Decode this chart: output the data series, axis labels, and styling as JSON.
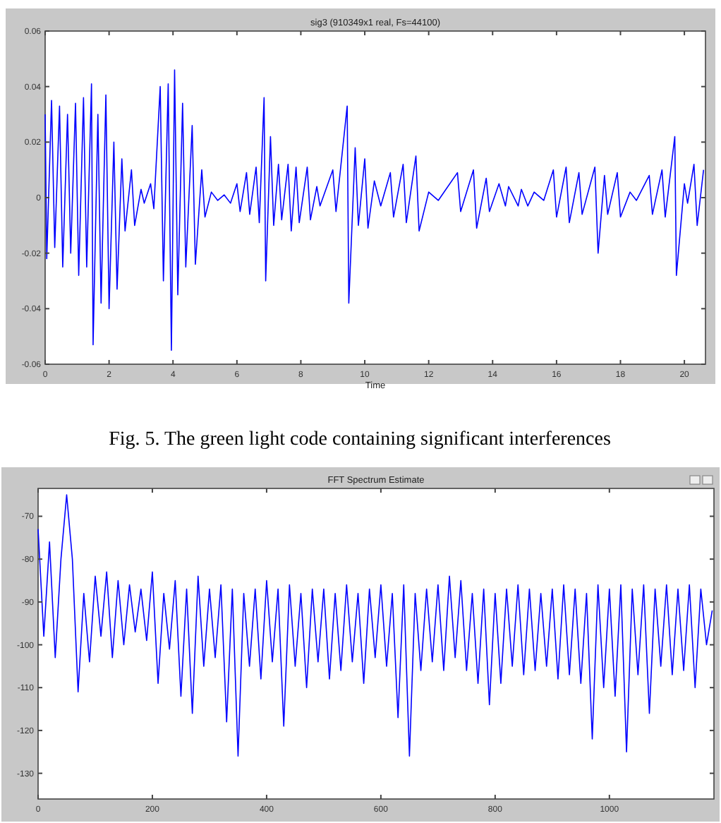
{
  "chart_data": [
    {
      "type": "line",
      "title": "sig3 (910349x1 real, Fs=44100)",
      "xlabel": "Time",
      "xlim": [
        0,
        20.66
      ],
      "ylim": [
        -0.06,
        0.06
      ],
      "xticks": [
        0,
        2,
        4,
        6,
        8,
        10,
        12,
        14,
        16,
        18,
        20
      ],
      "yticks": [
        -0.06,
        -0.04,
        -0.02,
        0,
        0.02,
        0.04,
        0.06
      ],
      "annotations": [
        "Fig. 5. The green light code containing significant interferences"
      ],
      "x": [
        0,
        0.05,
        0.2,
        0.3,
        0.45,
        0.55,
        0.7,
        0.8,
        0.95,
        1.05,
        1.2,
        1.3,
        1.45,
        1.5,
        1.65,
        1.75,
        1.9,
        2.0,
        2.15,
        2.25,
        2.4,
        2.5,
        2.7,
        2.8,
        3.0,
        3.1,
        3.3,
        3.4,
        3.6,
        3.7,
        3.85,
        3.95,
        4.05,
        4.15,
        4.3,
        4.4,
        4.6,
        4.7,
        4.9,
        5.0,
        5.2,
        5.4,
        5.6,
        5.8,
        6.0,
        6.1,
        6.3,
        6.4,
        6.6,
        6.7,
        6.85,
        6.9,
        7.05,
        7.15,
        7.3,
        7.4,
        7.6,
        7.7,
        7.85,
        7.95,
        8.2,
        8.3,
        8.5,
        8.6,
        9.0,
        9.1,
        9.45,
        9.5,
        9.7,
        9.8,
        10.0,
        10.1,
        10.3,
        10.5,
        10.8,
        10.9,
        11.2,
        11.3,
        11.6,
        11.7,
        12.0,
        12.3,
        12.9,
        13.0,
        13.4,
        13.5,
        13.8,
        13.9,
        14.2,
        14.4,
        14.5,
        14.8,
        14.9,
        15.1,
        15.3,
        15.6,
        15.9,
        16.0,
        16.3,
        16.4,
        16.7,
        16.8,
        17.2,
        17.3,
        17.5,
        17.6,
        17.9,
        18.0,
        18.3,
        18.5,
        18.9,
        19.0,
        19.3,
        19.4,
        19.7,
        19.75,
        20.0,
        20.1,
        20.3,
        20.4,
        20.6
      ],
      "series": [
        {
          "color": "#0000ff",
          "values": [
            0.03,
            -0.022,
            0.035,
            -0.018,
            0.033,
            -0.025,
            0.03,
            -0.02,
            0.034,
            -0.028,
            0.036,
            -0.025,
            0.041,
            -0.053,
            0.03,
            -0.038,
            0.037,
            -0.04,
            0.02,
            -0.033,
            0.014,
            -0.012,
            0.01,
            -0.01,
            0.003,
            -0.002,
            0.005,
            -0.004,
            0.04,
            -0.03,
            0.041,
            -0.055,
            0.046,
            -0.035,
            0.034,
            -0.025,
            0.026,
            -0.024,
            0.01,
            -0.007,
            0.002,
            -0.001,
            0.001,
            -0.002,
            0.005,
            -0.005,
            0.009,
            -0.006,
            0.011,
            -0.009,
            0.036,
            -0.03,
            0.022,
            -0.01,
            0.012,
            -0.008,
            0.012,
            -0.012,
            0.011,
            -0.009,
            0.011,
            -0.008,
            0.004,
            -0.003,
            0.01,
            -0.005,
            0.033,
            -0.038,
            0.018,
            -0.01,
            0.014,
            -0.011,
            0.006,
            -0.003,
            0.009,
            -0.007,
            0.012,
            -0.009,
            0.015,
            -0.012,
            0.002,
            -0.001,
            0.009,
            -0.005,
            0.01,
            -0.011,
            0.007,
            -0.005,
            0.005,
            -0.003,
            0.004,
            -0.003,
            0.003,
            -0.003,
            0.002,
            -0.001,
            0.01,
            -0.007,
            0.011,
            -0.009,
            0.009,
            -0.006,
            0.011,
            -0.02,
            0.008,
            -0.006,
            0.009,
            -0.007,
            0.002,
            -0.001,
            0.008,
            -0.006,
            0.01,
            -0.007,
            0.022,
            -0.028,
            0.005,
            -0.002,
            0.012,
            -0.01,
            0.01
          ]
        }
      ]
    },
    {
      "type": "line",
      "title": "FFT Spectrum Estimate",
      "xlim": [
        0,
        1183
      ],
      "ylim": [
        -136,
        -63.5
      ],
      "xticks": [
        0,
        200,
        400,
        600,
        800,
        1000
      ],
      "yticks": [
        -130,
        -120,
        -110,
        -100,
        -90,
        -80,
        -70
      ],
      "x": [
        0,
        10,
        20,
        30,
        40,
        50,
        60,
        70,
        80,
        90,
        100,
        110,
        120,
        130,
        140,
        150,
        160,
        170,
        180,
        190,
        200,
        210,
        220,
        230,
        240,
        250,
        260,
        270,
        280,
        290,
        300,
        310,
        320,
        330,
        340,
        350,
        360,
        370,
        380,
        390,
        400,
        410,
        420,
        430,
        440,
        450,
        460,
        470,
        480,
        490,
        500,
        510,
        520,
        530,
        540,
        550,
        560,
        570,
        580,
        590,
        600,
        610,
        620,
        630,
        640,
        650,
        660,
        670,
        680,
        690,
        700,
        710,
        720,
        730,
        740,
        750,
        760,
        770,
        780,
        790,
        800,
        810,
        820,
        830,
        840,
        850,
        860,
        870,
        880,
        890,
        900,
        910,
        920,
        930,
        940,
        950,
        960,
        970,
        980,
        990,
        1000,
        1010,
        1020,
        1030,
        1040,
        1050,
        1060,
        1070,
        1080,
        1090,
        1100,
        1110,
        1120,
        1130,
        1140,
        1150,
        1160,
        1170,
        1180
      ],
      "series": [
        {
          "color": "#0000ff",
          "values": [
            -73,
            -98,
            -76,
            -103,
            -80,
            -65,
            -80,
            -111,
            -88,
            -104,
            -84,
            -98,
            -83,
            -103,
            -85,
            -100,
            -86,
            -97,
            -87,
            -99,
            -83,
            -109,
            -88,
            -101,
            -85,
            -112,
            -87,
            -116,
            -84,
            -105,
            -87,
            -103,
            -86,
            -118,
            -87,
            -126,
            -88,
            -105,
            -87,
            -108,
            -85,
            -104,
            -87,
            -119,
            -86,
            -105,
            -88,
            -110,
            -87,
            -104,
            -87,
            -108,
            -88,
            -106,
            -86,
            -104,
            -88,
            -109,
            -87,
            -103,
            -86,
            -105,
            -88,
            -117,
            -86,
            -126,
            -88,
            -106,
            -87,
            -104,
            -86,
            -106,
            -84,
            -103,
            -85,
            -106,
            -88,
            -109,
            -87,
            -114,
            -88,
            -109,
            -87,
            -105,
            -86,
            -107,
            -87,
            -106,
            -88,
            -105,
            -87,
            -108,
            -86,
            -107,
            -87,
            -109,
            -88,
            -122,
            -86,
            -110,
            -87,
            -112,
            -86,
            -125,
            -87,
            -107,
            -86,
            -116,
            -87,
            -105,
            -86,
            -107,
            -87,
            -106,
            -86,
            -110,
            -87,
            -100,
            -92
          ]
        }
      ]
    }
  ]
}
